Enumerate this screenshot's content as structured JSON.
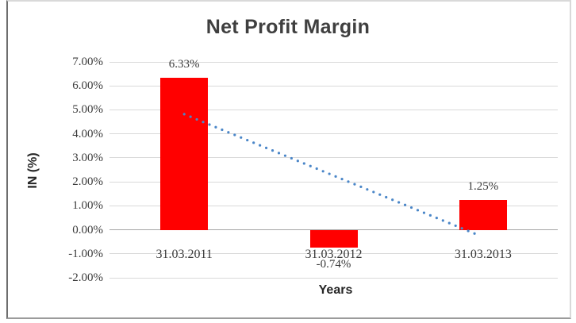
{
  "chart_data": {
    "type": "bar",
    "title": "Net Profit Margin",
    "xlabel": "Years",
    "ylabel": "IN (%)",
    "categories": [
      "31.03.2011",
      "31.03.2012",
      "31.03.2013"
    ],
    "values": [
      6.33,
      -0.74,
      1.25
    ],
    "data_labels": [
      "6.33%",
      "-0.74%",
      "1.25%"
    ],
    "ylim": [
      -2,
      7
    ],
    "ytick_step": 1,
    "ytick_labels": [
      "7.00%",
      "6.00%",
      "5.00%",
      "4.00%",
      "3.00%",
      "2.00%",
      "1.00%",
      "0.00%",
      "-1.00%",
      "-2.00%"
    ],
    "grid": true,
    "legend": false,
    "bar_color": "#FF0000",
    "gridline_color": "#D9D9D9",
    "zero_line_color": "#A6A6A6",
    "text_color": "#3B3B3B",
    "title_color": "#3F3F3F",
    "trendline": {
      "type": "linear",
      "style": "dotted",
      "color": "#4A86C8",
      "start_value": 4.82,
      "end_value": -0.26
    }
  }
}
